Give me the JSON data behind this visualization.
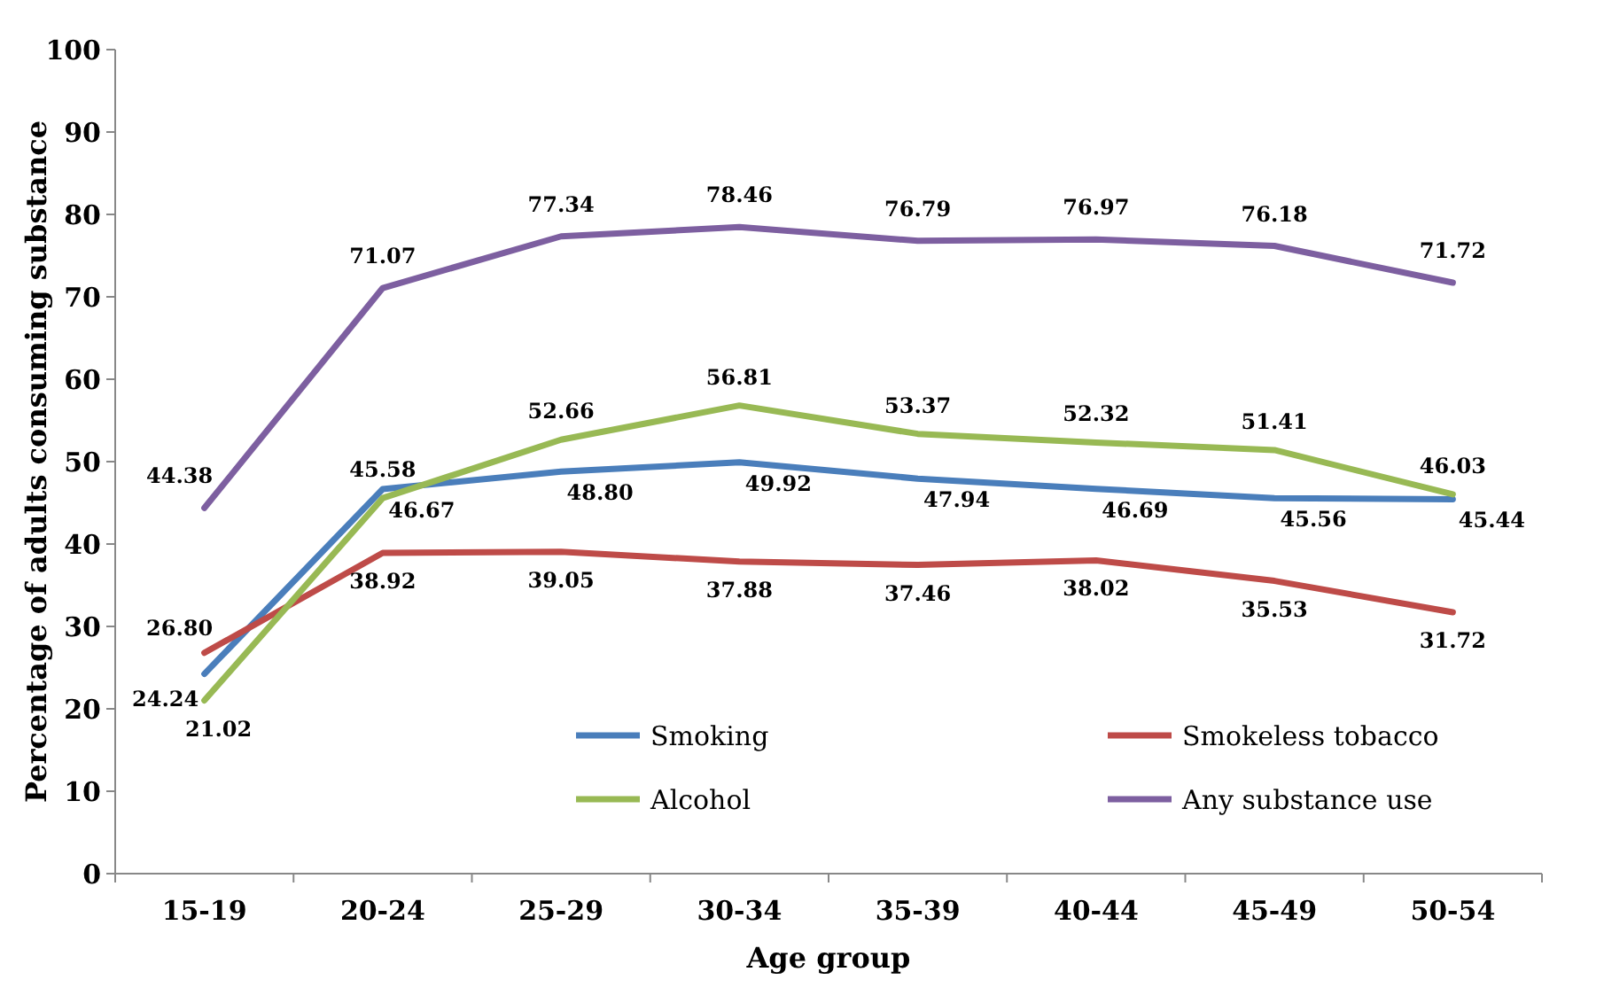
{
  "chart_data": {
    "type": "line",
    "xlabel": "Age group",
    "ylabel": "Percentage of adults consuming substance",
    "categories": [
      "15-19",
      "20-24",
      "25-29",
      "30-34",
      "35-39",
      "40-44",
      "45-49",
      "50-54"
    ],
    "series": [
      {
        "name": "Smoking",
        "color": "#4a7ebb",
        "values": [
          24.24,
          46.67,
          48.8,
          49.92,
          47.94,
          46.69,
          45.56,
          45.44
        ],
        "value_labels": [
          "24.24",
          "46.67",
          "48.80",
          "49.92",
          "47.94",
          "46.69",
          "45.56",
          "45.44"
        ]
      },
      {
        "name": "Smokeless tobacco",
        "color": "#be4b48",
        "values": [
          26.8,
          38.92,
          39.05,
          37.88,
          37.46,
          38.02,
          35.53,
          31.72
        ],
        "value_labels": [
          "26.80",
          "38.92",
          "39.05",
          "37.88",
          "37.46",
          "38.02",
          "35.53",
          "31.72"
        ]
      },
      {
        "name": "Alcohol",
        "color": "#98b954",
        "values": [
          21.02,
          45.58,
          52.66,
          56.81,
          53.37,
          52.32,
          51.41,
          46.03
        ],
        "value_labels": [
          "21.02",
          "45.58",
          "52.66",
          "56.81",
          "53.37",
          "52.32",
          "51.41",
          "46.03"
        ]
      },
      {
        "name": "Any substance use",
        "color": "#7d5fa0",
        "values": [
          44.38,
          71.07,
          77.34,
          78.46,
          76.79,
          76.97,
          76.18,
          71.72
        ],
        "value_labels": [
          "44.38",
          "71.07",
          "77.34",
          "78.46",
          "76.79",
          "76.97",
          "76.18",
          "71.72"
        ]
      }
    ],
    "ylim": [
      0,
      100
    ],
    "yticks": [
      0,
      10,
      20,
      30,
      40,
      50,
      60,
      70,
      80,
      90,
      100
    ],
    "grid": false,
    "legend": "bottom right",
    "marker": "none",
    "line_style": "solid"
  }
}
